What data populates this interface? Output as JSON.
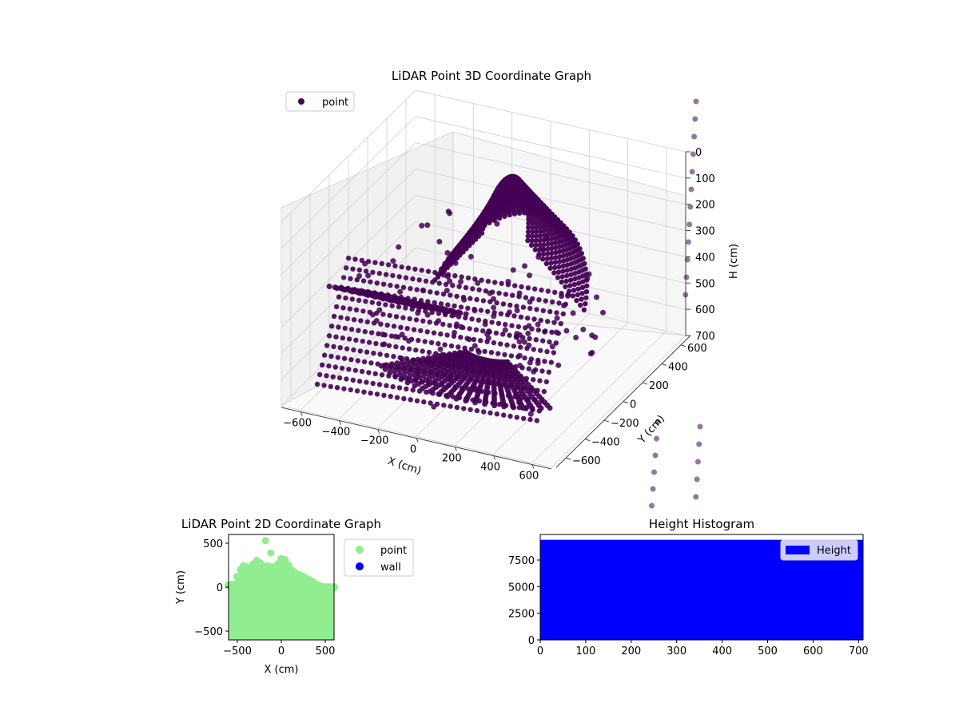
{
  "chart_data": [
    {
      "type": "scatter",
      "projection": "3d",
      "title": "LiDAR Point 3D Coordinate Graph",
      "xlabel": "X (cm)",
      "ylabel": "Y (cm)",
      "zlabel": "H (cm)",
      "xlim": [
        -700,
        700
      ],
      "ylim": [
        -700,
        700
      ],
      "zlim": [
        0,
        700
      ],
      "z_axis_inverted": true,
      "xticks": [
        "−600",
        "−400",
        "−200",
        "0",
        "200",
        "400",
        "600"
      ],
      "yticks": [
        "−600",
        "−400",
        "−200",
        "0",
        "200",
        "400",
        "600"
      ],
      "zticks": [
        "0",
        "100",
        "200",
        "300",
        "400",
        "500",
        "600",
        "700"
      ],
      "grid": true,
      "legend": {
        "position": "upper-left",
        "entries": [
          "point"
        ]
      },
      "series": [
        {
          "name": "point",
          "color": "#440154",
          "shape": "circle",
          "description_values": "dense concentric scan rings from a LiDAR sweep; points spread roughly X -650..650, Y -650..650, H 0..700"
        }
      ]
    },
    {
      "type": "scatter",
      "title": "LiDAR Point 2D Coordinate Graph",
      "xlabel": "X (cm)",
      "ylabel": "Y (cm)",
      "xlim": [
        -600,
        600
      ],
      "ylim": [
        -600,
        600
      ],
      "xticks": [
        "−500",
        "0",
        "500"
      ],
      "yticks": [
        "−500",
        "0",
        "500"
      ],
      "legend": {
        "position": "outside-right",
        "entries": [
          "point",
          "wall"
        ]
      },
      "series": [
        {
          "name": "point",
          "color": "#90ee90",
          "upper_envelope": [
            [
              -600,
              20
            ],
            [
              -560,
              30
            ],
            [
              -500,
              120
            ],
            [
              -460,
              200
            ],
            [
              -430,
              240
            ],
            [
              -400,
              230
            ],
            [
              -360,
              210
            ],
            [
              -320,
              260
            ],
            [
              -280,
              300
            ],
            [
              -240,
              270
            ],
            [
              -200,
              200
            ],
            [
              -160,
              240
            ],
            [
              -120,
              230
            ],
            [
              -80,
              180
            ],
            [
              -40,
              260
            ],
            [
              0,
              320
            ],
            [
              40,
              310
            ],
            [
              80,
              250
            ],
            [
              120,
              190
            ],
            [
              160,
              160
            ],
            [
              200,
              140
            ],
            [
              240,
              120
            ],
            [
              280,
              100
            ],
            [
              320,
              80
            ],
            [
              360,
              60
            ],
            [
              400,
              30
            ],
            [
              440,
              10
            ],
            [
              480,
              0
            ],
            [
              520,
              0
            ],
            [
              560,
              0
            ],
            [
              600,
              0
            ]
          ],
          "outliers": [
            [
              -180,
              530
            ],
            [
              -120,
              390
            ]
          ]
        },
        {
          "name": "wall",
          "color": "#0000ee",
          "values": []
        }
      ]
    },
    {
      "type": "bar",
      "title": "Height Histogram",
      "xlim": [
        0,
        710
      ],
      "ylim": [
        0,
        9900
      ],
      "xticks": [
        "0",
        "100",
        "200",
        "300",
        "400",
        "500",
        "600",
        "700"
      ],
      "yticks": [
        "0",
        "2500",
        "5000",
        "7500"
      ],
      "legend": {
        "position": "upper-right",
        "entries": [
          "Height"
        ]
      },
      "series": [
        {
          "name": "Height",
          "color": "#0000ff",
          "bins": [
            [
              0,
              710
            ]
          ],
          "values": [
            9400
          ]
        }
      ]
    }
  ]
}
